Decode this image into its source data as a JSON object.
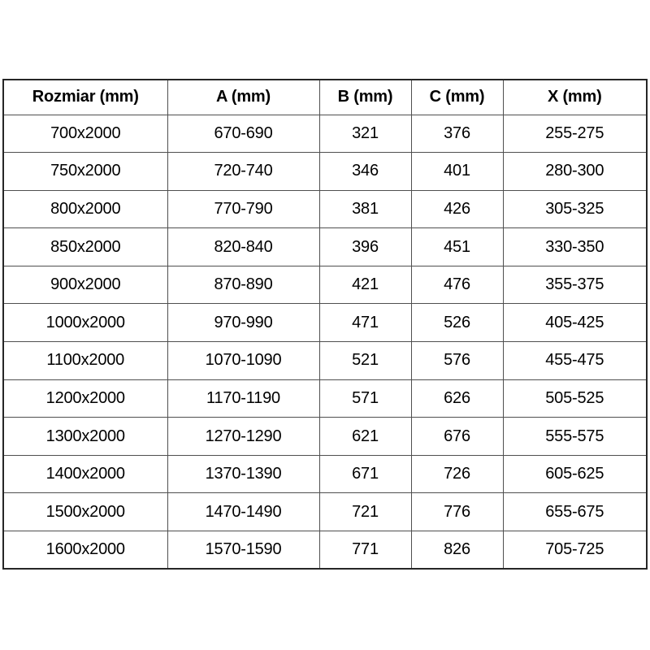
{
  "table": {
    "columns": [
      "Rozmiar (mm)",
      "A (mm)",
      "B (mm)",
      "C (mm)",
      "X (mm)"
    ],
    "rows": [
      [
        "700x2000",
        "670-690",
        "321",
        "376",
        "255-275"
      ],
      [
        "750x2000",
        "720-740",
        "346",
        "401",
        "280-300"
      ],
      [
        "800x2000",
        "770-790",
        "381",
        "426",
        "305-325"
      ],
      [
        "850x2000",
        "820-840",
        "396",
        "451",
        "330-350"
      ],
      [
        "900x2000",
        "870-890",
        "421",
        "476",
        "355-375"
      ],
      [
        "1000x2000",
        "970-990",
        "471",
        "526",
        "405-425"
      ],
      [
        "1100x2000",
        "1070-1090",
        "521",
        "576",
        "455-475"
      ],
      [
        "1200x2000",
        "1170-1190",
        "571",
        "626",
        "505-525"
      ],
      [
        "1300x2000",
        "1270-1290",
        "621",
        "676",
        "555-575"
      ],
      [
        "1400x2000",
        "1370-1390",
        "671",
        "726",
        "605-625"
      ],
      [
        "1500x2000",
        "1470-1490",
        "721",
        "776",
        "655-675"
      ],
      [
        "1600x2000",
        "1570-1590",
        "771",
        "826",
        "705-725"
      ]
    ],
    "colors": {
      "background": "#ffffff",
      "text": "#000000",
      "grid_line": "#4f4f4f",
      "outer_border": "#262626"
    }
  }
}
